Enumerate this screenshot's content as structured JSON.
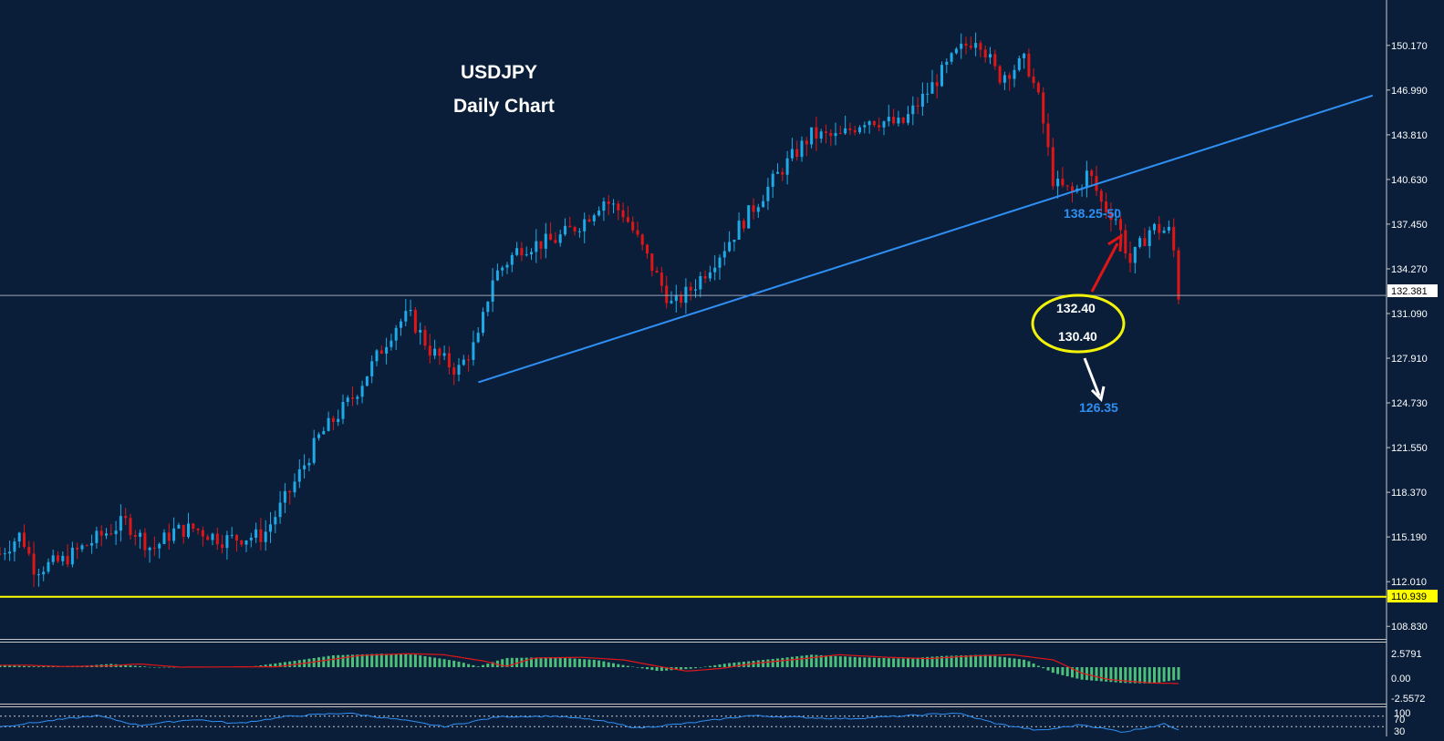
{
  "chart_title": {
    "line1": "USDJPY",
    "line2": "Daily Chart"
  },
  "colors": {
    "background": "#0a1e3a",
    "bull": "#1fa9e6",
    "bear": "#e01616",
    "trendline": "#2f8ff2",
    "support_line": "#ffff00",
    "ellipse": "#f2f20a",
    "arrow_up": "#e01616",
    "arrow_down": "#ffffff",
    "macd_hist": "#4cbf7a",
    "macd_signal": "#e01616",
    "rsi_line": "#2f8ff2"
  },
  "price_axis": {
    "ticks": [
      "150.170",
      "146.990",
      "143.810",
      "140.630",
      "137.450",
      "134.270",
      "131.090",
      "127.910",
      "124.730",
      "121.550",
      "118.370",
      "115.190",
      "112.010",
      "108.830"
    ],
    "current_price": "132.381",
    "support_level": "110.939"
  },
  "annotations": {
    "resistance_label": "138.25-50",
    "ellipse_upper": "132.40",
    "ellipse_lower": "130.40",
    "target_label": "126.35"
  },
  "macd_axis": {
    "ticks": [
      "2.5791",
      "0.00",
      "-2.5572"
    ]
  },
  "rsi_axis": {
    "ticks": [
      "100",
      "70",
      "30"
    ]
  },
  "chart_data": {
    "type": "candlestick",
    "title": "USDJPY Daily Chart",
    "ylim": [
      108.0,
      153.4
    ],
    "current_price": 132.381,
    "support_level": 110.939,
    "trendline": {
      "points": [
        [
          0,
          126.2
        ],
        [
          1,
          146.6
        ]
      ]
    },
    "trendline_values": {
      "start": 126.2,
      "end": 146.6
    },
    "targets": [
      138.25,
      138.5,
      132.4,
      130.4,
      126.35
    ],
    "path_anchors": [
      [
        0,
        114.0
      ],
      [
        0.03,
        115.4
      ],
      [
        0.05,
        112.9
      ],
      [
        0.09,
        113.5
      ],
      [
        0.14,
        115.1
      ],
      [
        0.18,
        116.3
      ],
      [
        0.22,
        114.3
      ],
      [
        0.25,
        115.6
      ],
      [
        0.28,
        115.8
      ],
      [
        0.32,
        115.0
      ],
      [
        0.38,
        115.3
      ],
      [
        0.42,
        118.6
      ],
      [
        0.46,
        122.3
      ],
      [
        0.51,
        125.2
      ],
      [
        0.54,
        127.7
      ],
      [
        0.57,
        130.2
      ],
      [
        0.59,
        131.0
      ],
      [
        0.62,
        128.5
      ],
      [
        0.66,
        127.0
      ],
      [
        0.69,
        129.3
      ],
      [
        0.71,
        133.6
      ],
      [
        0.75,
        135.8
      ],
      [
        0.8,
        136.3
      ],
      [
        0.84,
        137.6
      ],
      [
        0.87,
        139.2
      ],
      [
        0.9,
        138.2
      ],
      [
        0.93,
        135.4
      ],
      [
        0.97,
        131.6
      ],
      [
        1.0,
        133.0
      ],
      [
        1.04,
        135.5
      ],
      [
        1.08,
        138.2
      ],
      [
        1.13,
        141.5
      ],
      [
        1.17,
        143.8
      ],
      [
        1.21,
        143.6
      ],
      [
        1.25,
        145.0
      ],
      [
        1.3,
        144.5
      ],
      [
        1.34,
        147.0
      ],
      [
        1.38,
        149.6
      ],
      [
        1.41,
        150.9
      ],
      [
        1.44,
        147.9
      ],
      [
        1.48,
        149.1
      ],
      [
        1.5,
        146.0
      ],
      [
        1.52,
        140.3
      ],
      [
        1.55,
        139.6
      ],
      [
        1.57,
        141.2
      ],
      [
        1.59,
        138.8
      ],
      [
        1.61,
        137.9
      ],
      [
        1.63,
        134.7
      ],
      [
        1.66,
        137.2
      ],
      [
        1.69,
        136.9
      ],
      [
        1.7,
        132.4
      ]
    ],
    "macd_anchors": [
      [
        0,
        0.3
      ],
      [
        0.05,
        0.1
      ],
      [
        0.12,
        0.2
      ],
      [
        0.16,
        0.5
      ],
      [
        0.22,
        0.0
      ],
      [
        0.3,
        0.05
      ],
      [
        0.36,
        0.05
      ],
      [
        0.42,
        0.9
      ],
      [
        0.48,
        1.8
      ],
      [
        0.55,
        2.05
      ],
      [
        0.6,
        1.9
      ],
      [
        0.66,
        0.9
      ],
      [
        0.69,
        0.1
      ],
      [
        0.73,
        1.4
      ],
      [
        0.8,
        1.5
      ],
      [
        0.86,
        1.1
      ],
      [
        0.9,
        0.3
      ],
      [
        0.95,
        -0.6
      ],
      [
        1.0,
        -0.2
      ],
      [
        1.05,
        0.6
      ],
      [
        1.12,
        1.3
      ],
      [
        1.17,
        1.9
      ],
      [
        1.24,
        1.5
      ],
      [
        1.3,
        1.3
      ],
      [
        1.36,
        1.7
      ],
      [
        1.42,
        1.9
      ],
      [
        1.48,
        1.1
      ],
      [
        1.52,
        -0.9
      ],
      [
        1.56,
        -1.9
      ],
      [
        1.62,
        -2.4
      ],
      [
        1.66,
        -2.5
      ],
      [
        1.7,
        -1.9
      ]
    ],
    "rsi_anchors": [
      [
        0,
        30
      ],
      [
        0.08,
        55
      ],
      [
        0.14,
        72
      ],
      [
        0.2,
        35
      ],
      [
        0.28,
        58
      ],
      [
        0.34,
        42
      ],
      [
        0.42,
        70
      ],
      [
        0.5,
        82
      ],
      [
        0.58,
        55
      ],
      [
        0.64,
        30
      ],
      [
        0.72,
        68
      ],
      [
        0.8,
        70
      ],
      [
        0.86,
        55
      ],
      [
        0.92,
        25
      ],
      [
        1.0,
        45
      ],
      [
        1.08,
        72
      ],
      [
        1.16,
        65
      ],
      [
        1.22,
        60
      ],
      [
        1.3,
        70
      ],
      [
        1.38,
        82
      ],
      [
        1.44,
        40
      ],
      [
        1.5,
        15
      ],
      [
        1.56,
        38
      ],
      [
        1.62,
        10
      ],
      [
        1.68,
        40
      ],
      [
        1.7,
        20
      ]
    ]
  }
}
